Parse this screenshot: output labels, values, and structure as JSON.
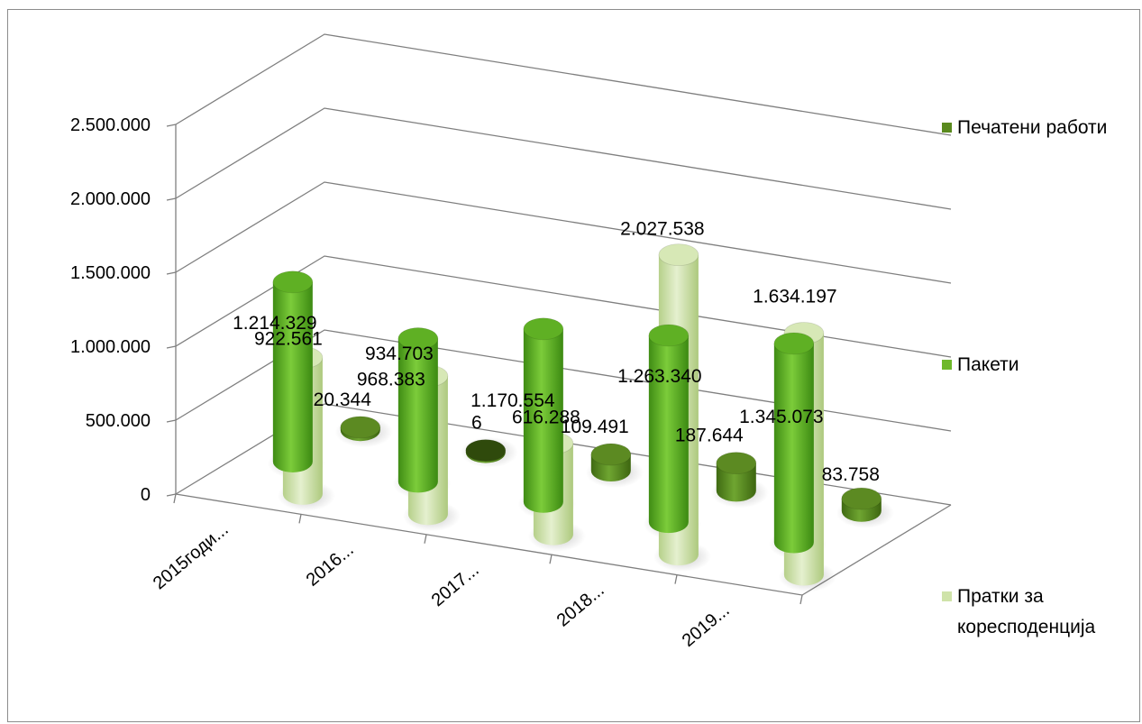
{
  "chart_data": {
    "type": "bar",
    "variant": "3d-cylinder",
    "categories": [
      "2015годи...",
      "2016...",
      "2017...",
      "2018...",
      "2019..."
    ],
    "series": [
      {
        "name": "Печатени работи",
        "values": [
          20344,
          6,
          109491,
          187644,
          83758
        ],
        "color": "#5a8a1e"
      },
      {
        "name": "Пакети",
        "values": [
          1214329,
          968383,
          1170554,
          1263340,
          1345073
        ],
        "color": "#6eb82a"
      },
      {
        "name": "Пратки за коресподенција",
        "values": [
          922561,
          934703,
          616288,
          2027538,
          1634197
        ],
        "color": "#cfe3a9"
      }
    ],
    "data_labels": {
      "Печатени работи": [
        "20.344",
        "6",
        "109.491",
        "187.644",
        "83.758"
      ],
      "Пакети": [
        "1.214.329",
        "968.383",
        "1.170.554",
        "1.263.340",
        "1.345.073"
      ],
      "Пратки за коресподенција": [
        "922.561",
        "934.703",
        "616.288",
        "2.027.538",
        "1.634.197"
      ]
    },
    "yticks": [
      "0",
      "500.000",
      "1.000.000",
      "1.500.000",
      "2.000.000",
      "2.500.000"
    ],
    "ylim": [
      0,
      2500000
    ],
    "grid": true,
    "legend_position": "right"
  }
}
